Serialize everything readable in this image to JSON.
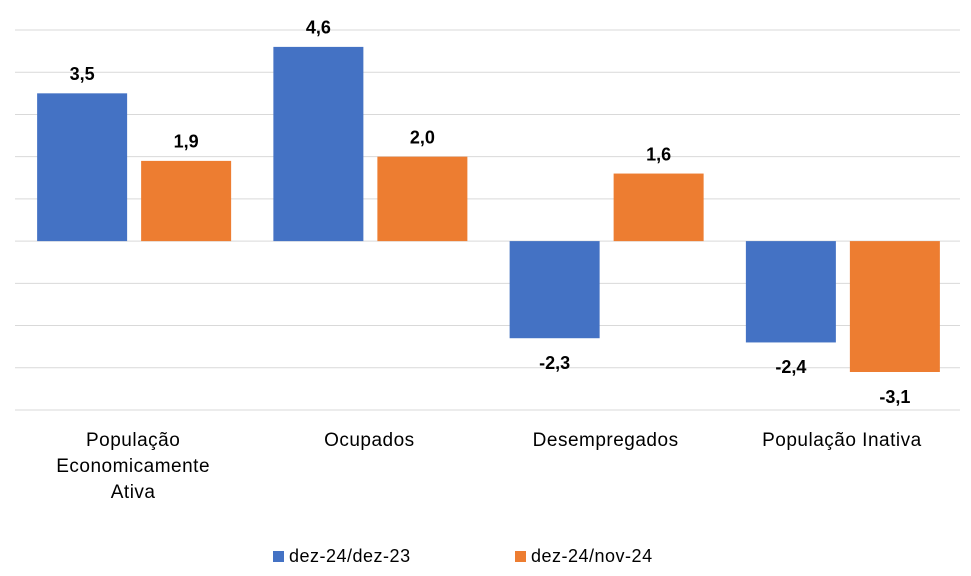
{
  "chart_data": {
    "type": "bar",
    "categories": [
      "População Economicamente Ativa",
      "Ocupados",
      "Desempregados",
      "População Inativa"
    ],
    "series": [
      {
        "name": "dez-24/dez-23",
        "color": "#4472c4",
        "values": [
          3.5,
          4.6,
          -2.3,
          -2.4
        ],
        "value_labels": [
          "3,5",
          "4,6",
          "-2,3",
          "-2,4"
        ]
      },
      {
        "name": "dez-24/nov-24",
        "color": "#ed7d31",
        "values": [
          1.9,
          2.0,
          1.6,
          -3.1
        ],
        "value_labels": [
          "1,9",
          "2,0",
          "1,6",
          "-3,1"
        ]
      }
    ],
    "ylim": [
      -4,
      5
    ],
    "yticks": [
      -4,
      -3,
      -2,
      -1,
      0,
      1,
      2,
      3,
      4,
      5
    ],
    "grid": true
  }
}
